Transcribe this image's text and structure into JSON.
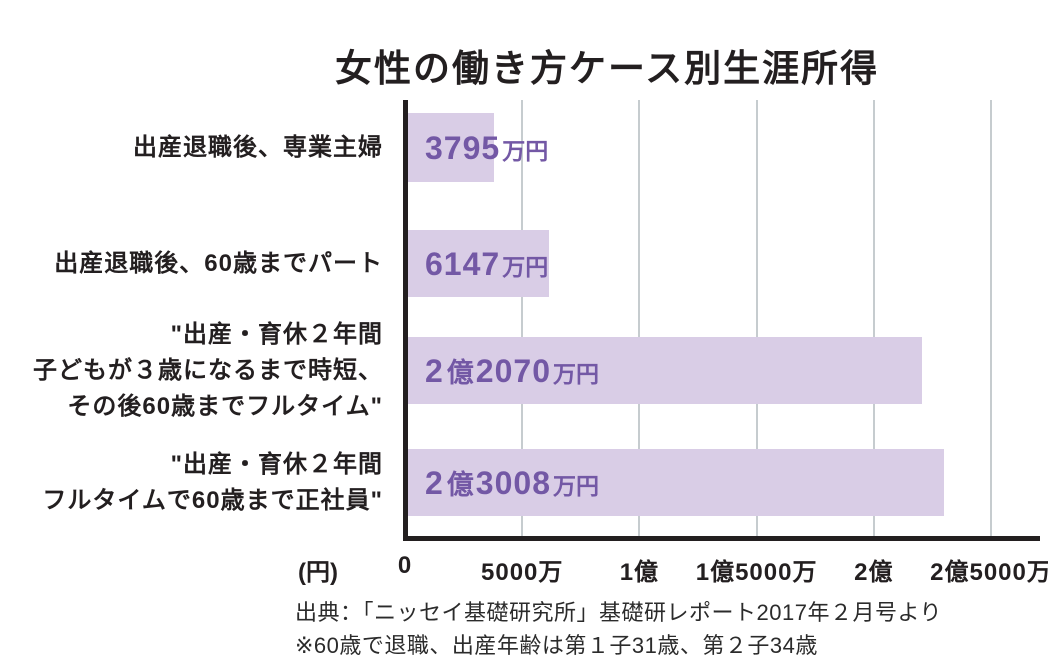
{
  "title": "女性の働き方ケース別生涯所得",
  "colors": {
    "bar_fill": "#d9cde6",
    "value_text": "#7358a5",
    "gridline": "#c6cccf",
    "axis": "#231f20",
    "background": "#ffffff"
  },
  "chart_data": {
    "type": "bar",
    "orientation": "horizontal",
    "title": "女性の働き方ケース別生涯所得",
    "xlabel_unit": "(円)",
    "value_unit": "万円",
    "xlim": [
      0,
      25000
    ],
    "grid": true,
    "x_ticks": [
      {
        "value": 0,
        "label": "0"
      },
      {
        "value": 5000,
        "label": "5000万"
      },
      {
        "value": 10000,
        "label": "1億"
      },
      {
        "value": 15000,
        "label": "1億5000万"
      },
      {
        "value": 20000,
        "label": "2億"
      },
      {
        "value": 25000,
        "label": "2億5000万"
      }
    ],
    "bars": [
      {
        "category_lines": [
          "出産退職後、専業主婦"
        ],
        "value": 3795,
        "value_label": "3795万円",
        "value_parts": {
          "num": "3795",
          "unit": "万円"
        }
      },
      {
        "category_lines": [
          "出産退職後、60歳までパート"
        ],
        "value": 6147,
        "value_label": "6147万円",
        "value_parts": {
          "num": "6147",
          "unit": "万円"
        }
      },
      {
        "category_lines": [
          "\"出産・育休２年間",
          "子どもが３歳になるまで時短、",
          "その後60歳までフルタイム\""
        ],
        "value": 22070,
        "value_label": "２億2070万円",
        "value_parts": {
          "oku_num": "2",
          "oku_unit": "億",
          "man_num": "2070",
          "man_unit": "万円"
        }
      },
      {
        "category_lines": [
          "\"出産・育休２年間",
          "フルタイムで60歳まで正社員\""
        ],
        "value": 23008,
        "value_label": "２億3008万円",
        "value_parts": {
          "oku_num": "2",
          "oku_unit": "億",
          "man_num": "3008",
          "man_unit": "万円"
        }
      }
    ]
  },
  "footer": {
    "source": "出典：「ニッセイ基礎研究所」基礎研レポート2017年２月号より",
    "note": "※60歳で退職、出産年齢は第１子31歳、第２子34歳"
  }
}
